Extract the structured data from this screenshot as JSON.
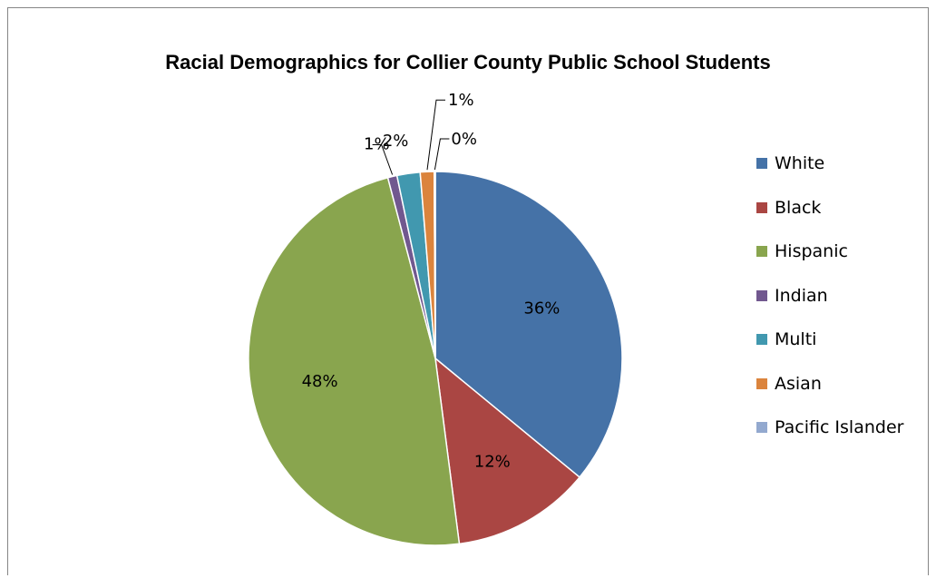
{
  "chart_data": {
    "type": "pie",
    "title": "Racial Demographics for Collier County Public School Students",
    "legend_position": "right",
    "series": [
      {
        "slices": [
          {
            "category": "White",
            "value": 36,
            "label": "36%",
            "color": "#4572A7"
          },
          {
            "category": "Black",
            "value": 12,
            "label": "12%",
            "color": "#AA4643"
          },
          {
            "category": "Hispanic",
            "value": 48,
            "label": "48%",
            "color": "#89A54E"
          },
          {
            "category": "Indian",
            "value": 0.8,
            "label": "1%",
            "color": "#71588F"
          },
          {
            "category": "Multi",
            "value": 2,
            "label": "2%",
            "color": "#4198AF"
          },
          {
            "category": "Asian",
            "value": 1.2,
            "label": "1%",
            "color": "#DB843D"
          },
          {
            "category": "Pacific Islander",
            "value": 0.1,
            "label": "0%",
            "color": "#93A9CF"
          }
        ]
      }
    ]
  }
}
